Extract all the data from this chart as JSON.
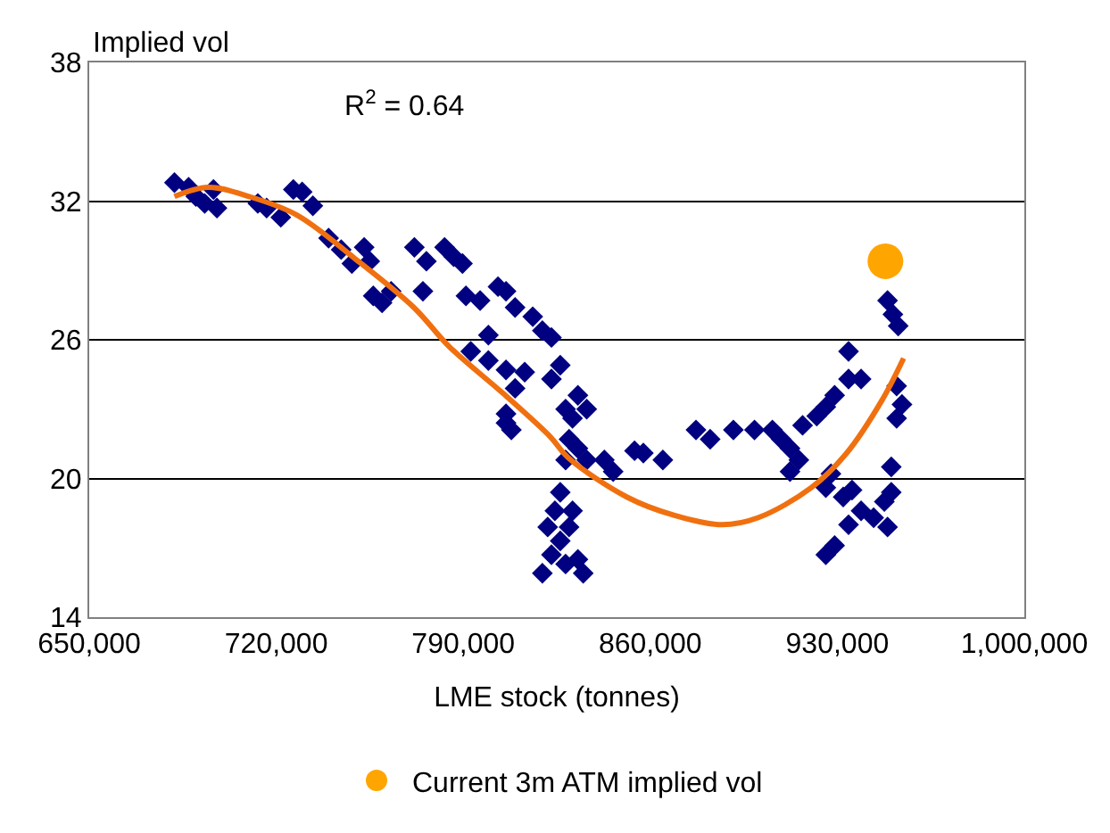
{
  "chart_data": {
    "type": "scatter",
    "xlabel": "LME stock (tonnes)",
    "ylabel": "Implied vol",
    "annotations": [
      "R$^{2}$ = 0.64"
    ],
    "xlim": [
      650000,
      1000000
    ],
    "xticks": [
      {
        "value": 650000,
        "label": "650,000"
      },
      {
        "value": 720000,
        "label": "720,000"
      },
      {
        "value": 790000,
        "label": "790,000"
      },
      {
        "value": 860000,
        "label": "860,000"
      },
      {
        "value": 930000,
        "label": "930,000"
      },
      {
        "value": 1000000,
        "label": "1,000,000"
      }
    ],
    "ylim": [
      14,
      38
    ],
    "yticks": [
      14,
      20,
      26,
      32,
      38
    ],
    "grid": "y",
    "legend": "bottom",
    "series": [
      {
        "color": "#000080",
        "marker": "diamond",
        "x": [
          681900,
          687200,
          689900,
          693200,
          696500,
          697800,
          713100,
          716400,
          721700,
          726400,
          729700,
          733700,
          739600,
          744300,
          748300,
          752900,
          755000,
          756300,
          759600,
          763000,
          771700,
          776200,
          774900,
          783000,
          786400,
          789700,
          791000,
          796300,
          803000,
          806000,
          809400,
          799400,
          792800,
          799400,
          806000,
          809400,
          806000,
          808000,
          816000,
          819600,
          823000,
          813000,
          823000,
          826300,
          806000,
          832900,
          828300,
          830900,
          836200,
          829600,
          832900,
          828300,
          836200,
          842800,
          846100,
          854100,
          857400,
          864700,
          826300,
          824300,
          821600,
          823000,
          819600,
          828300,
          832900,
          834900,
          829600,
          830900,
          826300,
          877100,
          882400,
          891100,
          899000,
          905700,
          909000,
          912300,
          915600,
          912300,
          917000,
          922300,
          925700,
          929000,
          934200,
          934200,
          938900,
          927600,
          925700,
          932200,
          935500,
          925700,
          929000,
          934200,
          938900,
          943600,
          947600,
          948800,
          950200,
          948800,
          950800,
          952800,
          952200,
          954200,
          952200,
          950200
        ],
        "values": [
          32.8,
          32.6,
          32.2,
          31.9,
          32.5,
          31.7,
          31.9,
          31.7,
          31.3,
          32.5,
          32.4,
          31.8,
          30.4,
          29.9,
          29.3,
          30.0,
          29.4,
          27.9,
          27.6,
          28.1,
          30.0,
          29.4,
          28.1,
          30.0,
          29.6,
          29.3,
          27.9,
          27.7,
          28.3,
          28.1,
          27.4,
          26.2,
          25.5,
          25.1,
          24.7,
          23.9,
          22.4,
          22.1,
          27.0,
          26.4,
          26.1,
          24.6,
          24.3,
          24.9,
          22.8,
          23.6,
          23.0,
          22.6,
          23.0,
          21.7,
          21.3,
          20.8,
          20.8,
          20.8,
          20.3,
          21.2,
          21.1,
          20.8,
          19.4,
          18.6,
          17.9,
          16.7,
          15.9,
          16.3,
          16.5,
          15.9,
          17.9,
          18.6,
          17.3,
          22.1,
          21.7,
          22.1,
          22.1,
          22.1,
          21.7,
          21.3,
          20.8,
          20.3,
          22.3,
          22.7,
          23.1,
          23.6,
          24.3,
          25.5,
          24.3,
          20.2,
          19.6,
          19.2,
          19.5,
          16.7,
          17.1,
          18.0,
          18.6,
          18.3,
          19.0,
          17.9,
          19.4,
          27.7,
          27.1,
          26.6,
          24.0,
          23.2,
          22.6,
          20.5
        ]
      },
      {
        "type": "line",
        "color": "#f07010",
        "marker": "none",
        "x": [
          681900,
          694500,
          709800,
          727700,
          749600,
          771500,
          784800,
          804700,
          822600,
          829300,
          851200,
          869100,
          887000,
          900300,
          920200,
          933500,
          946800,
          954800
        ],
        "values": [
          32.2,
          32.6,
          32.2,
          31.4,
          29.5,
          27.4,
          25.7,
          23.7,
          21.8,
          20.9,
          19.2,
          18.4,
          18.0,
          18.3,
          19.6,
          21.1,
          23.4,
          25.2
        ]
      },
      {
        "name": "Current 3m ATM implied vol",
        "color": "#ffa500",
        "marker": "circle",
        "x": [
          948000
        ],
        "values": [
          29.4
        ]
      }
    ]
  }
}
